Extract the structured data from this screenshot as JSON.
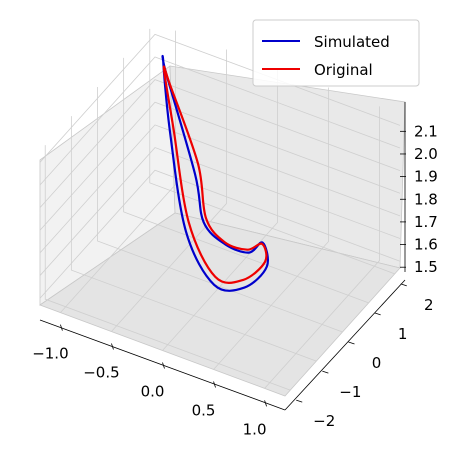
{
  "chart_data": {
    "type": "line",
    "projection": "3d",
    "title": "",
    "xlabel": "",
    "ylabel": "",
    "zlabel": "",
    "xlim": [
      -1.2,
      1.2
    ],
    "ylim": [
      -2.2,
      2.2
    ],
    "zlim": [
      1.47,
      2.15
    ],
    "x_ticks": [
      "−1.0",
      "−0.5",
      "0.0",
      "0.5",
      "1.0"
    ],
    "y_ticks": [
      "−2",
      "−1",
      "0",
      "1",
      "2"
    ],
    "z_ticks": [
      "1.5",
      "1.6",
      "1.7",
      "1.8",
      "1.9",
      "2.0",
      "2.1"
    ],
    "x_tick_values": [
      -1.0,
      -0.5,
      0.0,
      0.5,
      1.0
    ],
    "y_tick_values": [
      -2,
      -1,
      0,
      1,
      2
    ],
    "z_tick_values": [
      1.5,
      1.6,
      1.7,
      1.8,
      1.9,
      2.0,
      2.1
    ],
    "grid": true,
    "legend_position": "top-right",
    "series": [
      {
        "name": "Simulated",
        "color": "#0000cc",
        "points": [
          [
            -0.19,
            -0.21,
            1.96
          ],
          [
            -0.76,
            0.92,
            2.16
          ],
          [
            -1.01,
            1.77,
            2.07
          ],
          [
            -0.9,
            1.6,
            1.8
          ],
          [
            -0.48,
            0.57,
            1.56
          ],
          [
            0.05,
            -0.42,
            1.54
          ],
          [
            0.59,
            -1.37,
            1.74
          ],
          [
            0.93,
            -1.84,
            1.95
          ],
          [
            0.86,
            -1.73,
            2.03
          ],
          [
            0.63,
            -1.36,
            1.9
          ],
          [
            0.24,
            -0.73,
            1.79
          ],
          [
            -0.17,
            0.04,
            1.72
          ],
          [
            -0.19,
            -0.21,
            1.96
          ]
        ]
      },
      {
        "name": "Original",
        "color": "#ee0000",
        "points": [
          [
            -0.18,
            -0.14,
            2.0
          ],
          [
            -0.7,
            0.84,
            2.13
          ],
          [
            -0.98,
            1.68,
            2.05
          ],
          [
            -0.86,
            1.58,
            1.82
          ],
          [
            -0.46,
            0.6,
            1.6
          ],
          [
            0.05,
            -0.38,
            1.57
          ],
          [
            0.56,
            -1.3,
            1.76
          ],
          [
            0.9,
            -1.79,
            1.96
          ],
          [
            0.85,
            -1.71,
            2.02
          ],
          [
            0.6,
            -1.3,
            1.9
          ],
          [
            0.22,
            -0.68,
            1.79
          ],
          [
            -0.15,
            0.05,
            1.74
          ],
          [
            -0.18,
            -0.14,
            2.0
          ]
        ]
      }
    ]
  }
}
